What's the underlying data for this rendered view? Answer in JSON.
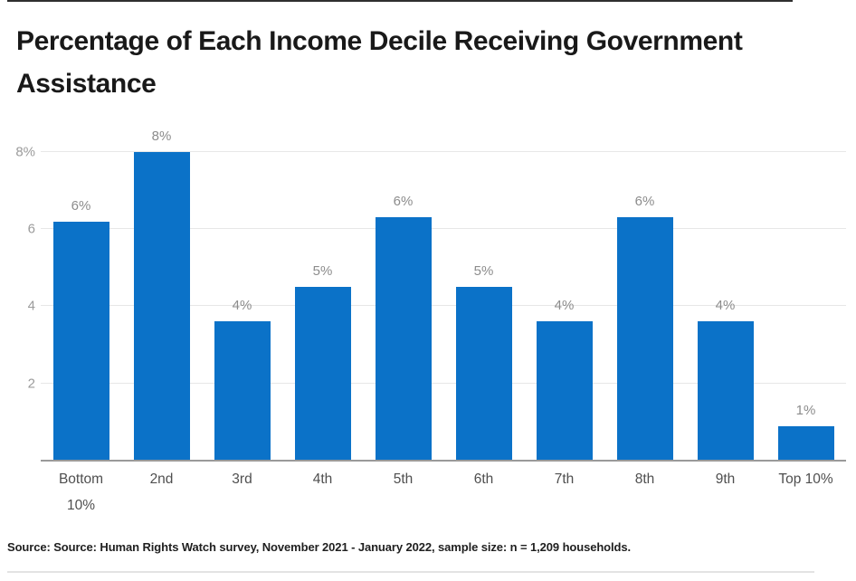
{
  "title": "Percentage of Each Income Decile Receiving Government Assistance",
  "source_note": "Source: Source: Human Rights Watch survey, November 2021 - January 2022, sample size: n = 1,209 households.",
  "colors": {
    "bar": "#0b72c8",
    "axis_line": "#9a9a9a",
    "gridline": "#e7e7e7",
    "ytick_text": "#9b9b9b",
    "value_label_text": "#8c8c8c",
    "xtick_text": "#4f4f4f",
    "title_text": "#191919",
    "top_border": "#2f2f2f"
  },
  "chart_data": {
    "type": "bar",
    "title": "Percentage of Each Income Decile Receiving Government Assistance",
    "categories": [
      "Bottom 10%",
      "2nd",
      "3rd",
      "4th",
      "5th",
      "6th",
      "7th",
      "8th",
      "9th",
      "Top 10%"
    ],
    "values": [
      6.2,
      8.0,
      3.6,
      4.5,
      6.3,
      4.5,
      3.6,
      6.3,
      3.6,
      0.9
    ],
    "bar_labels": [
      "6%",
      "8%",
      "4%",
      "5%",
      "6%",
      "5%",
      "4%",
      "6%",
      "4%",
      "1%"
    ],
    "yticks": [
      {
        "value": 2,
        "label": "2"
      },
      {
        "value": 4,
        "label": "4"
      },
      {
        "value": 6,
        "label": "6"
      },
      {
        "value": 8,
        "label": "8%"
      }
    ],
    "ylim": [
      0,
      8.56
    ],
    "xlabel": "",
    "ylabel": "",
    "grid": "horizontal",
    "legend": "none",
    "bar_color": "#0b72c8",
    "unit": "percent of households"
  }
}
